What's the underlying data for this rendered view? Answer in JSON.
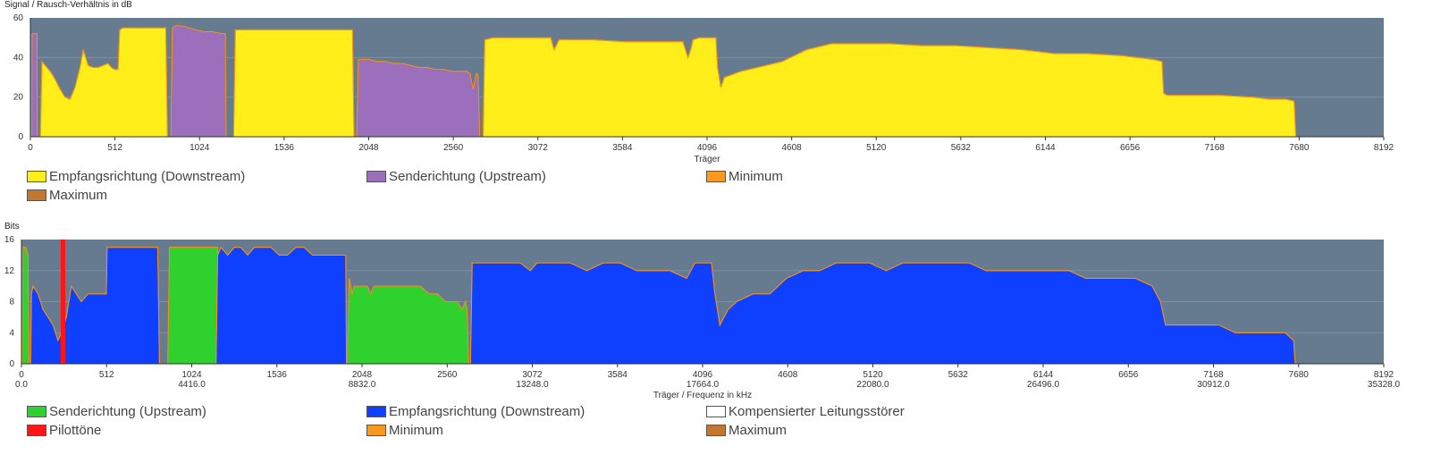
{
  "chart_data": [
    {
      "type": "area",
      "ylabel": "Signal / Rausch-Verhältnis in dB",
      "xlabel": "Träger",
      "ylim": [
        0,
        60
      ],
      "xlim": [
        0,
        8192
      ],
      "yticks": [
        "0",
        "20",
        "40",
        "60"
      ],
      "xticks": [
        "0",
        "512",
        "1024",
        "1536",
        "2048",
        "2560",
        "3072",
        "3584",
        "4096",
        "4608",
        "5120",
        "5632",
        "6144",
        "6656",
        "7168",
        "7680",
        "8192"
      ],
      "grid": true,
      "background": "#667b8f",
      "legend_position": "bottom-left",
      "legend": [
        {
          "label": "Empfangsrichtung (Downstream)",
          "color": "#ffee1a"
        },
        {
          "label": "Senderichtung (Upstream)",
          "color": "#9b6fbb"
        },
        {
          "label": "Minimum",
          "color": "#f79a1f"
        },
        {
          "label": "Maximum",
          "color": "#c4782f"
        }
      ],
      "series": [
        {
          "name": "Senderichtung (Upstream)",
          "color": "#9b6fbb",
          "segments": [
            {
              "x": [
                8,
                10,
                12,
                25,
                30,
                35,
                40,
                42
              ],
              "y": [
                0,
                52,
                52,
                52,
                52,
                52,
                52,
                0
              ]
            },
            {
              "x": [
                850,
                860,
                880,
                920,
                960,
                1000,
                1050,
                1100,
                1160,
                1180,
                1185
              ],
              "y": [
                0,
                55,
                56,
                56,
                55,
                54,
                53,
                53,
                52,
                52,
                0
              ]
            },
            {
              "x": [
                1975,
                1985,
                2000,
                2050,
                2100,
                2150,
                2200,
                2250,
                2300,
                2350,
                2400,
                2450,
                2500,
                2550,
                2600,
                2640,
                2660,
                2680,
                2700,
                2710,
                2720
              ],
              "y": [
                0,
                39,
                39,
                39,
                38,
                38,
                37,
                37,
                36,
                35,
                35,
                34,
                34,
                33,
                33,
                33,
                32,
                24,
                32,
                31,
                0
              ]
            }
          ]
        },
        {
          "name": "Empfangsrichtung (Downstream)",
          "color": "#ffee1a",
          "segments": [
            {
              "x": [
                60,
                70,
                90,
                120,
                150,
                180,
                210,
                240,
                270,
                300,
                320,
                350,
                380,
                410,
                440,
                470,
                490,
                510,
                520,
                530,
                540,
                560,
                600,
                700,
                800,
                820,
                830
              ],
              "y": [
                0,
                38,
                36,
                33,
                29,
                24,
                20,
                19,
                25,
                35,
                44,
                36,
                35,
                35,
                36,
                37,
                35,
                34,
                34,
                34,
                54,
                55,
                55,
                55,
                55,
                55,
                0
              ]
            },
            {
              "x": [
                1230,
                1240,
                1280,
                1350,
                1500,
                1700,
                1850,
                1950,
                1960
              ],
              "y": [
                0,
                54,
                54,
                54,
                54,
                54,
                54,
                54,
                0
              ]
            },
            {
              "x": [
                2740,
                2750,
                2800,
                3000,
                3150,
                3170,
                3200,
                3400,
                3600,
                3800,
                3950,
                3980,
                4000,
                4010,
                4050,
                4100,
                4150,
                4160,
                4180,
                4200,
                4300,
                4400,
                4500,
                4550,
                4600,
                4650,
                4700,
                4800,
                4850,
                4900,
                5000,
                5200,
                5400,
                5600,
                5800,
                6000,
                6100,
                6200,
                6400,
                6600,
                6700,
                6800,
                6850,
                6860,
                6880,
                7000,
                7200,
                7400,
                7500,
                7600,
                7650,
                7660
              ],
              "y": [
                0,
                49,
                50,
                50,
                50,
                44,
                49,
                49,
                48,
                48,
                48,
                40,
                45,
                49,
                50,
                50,
                50,
                35,
                25,
                30,
                33,
                35,
                37,
                38,
                40,
                42,
                44,
                46,
                47,
                47,
                47,
                47,
                46,
                46,
                45,
                44,
                43,
                42,
                42,
                41,
                40,
                39,
                38,
                22,
                21,
                21,
                21,
                20,
                19,
                19,
                18,
                0
              ]
            }
          ]
        }
      ]
    },
    {
      "type": "area",
      "ylabel": "Bits",
      "xlabel": "Träger / Frequenz in kHz",
      "ylim": [
        0,
        16
      ],
      "xlim": [
        0,
        8192
      ],
      "yticks": [
        "0",
        "4",
        "8",
        "12",
        "16"
      ],
      "xticks": [
        "0",
        "512",
        "1024",
        "1536",
        "2048",
        "2560",
        "3072",
        "3584",
        "4096",
        "4608",
        "5120",
        "5632",
        "6144",
        "6656",
        "7168",
        "7680",
        "8192"
      ],
      "freq_labels": [
        {
          "x": 0,
          "label": "0.0"
        },
        {
          "x": 1024,
          "label": "4416.0"
        },
        {
          "x": 2048,
          "label": "8832.0"
        },
        {
          "x": 3072,
          "label": "13248.0"
        },
        {
          "x": 4096,
          "label": "17664.0"
        },
        {
          "x": 5120,
          "label": "22080.0"
        },
        {
          "x": 6144,
          "label": "26496.0"
        },
        {
          "x": 7168,
          "label": "30912.0"
        },
        {
          "x": 8192,
          "label": "35328.0"
        }
      ],
      "grid": true,
      "background": "#667b8f",
      "legend_position": "bottom-left",
      "legend": [
        {
          "label": "Senderichtung (Upstream)",
          "color": "#2ed12e"
        },
        {
          "label": "Empfangsrichtung (Downstream)",
          "color": "#1040ff"
        },
        {
          "label": "Kompensierter Leitungsstörer",
          "color": "#ffffff"
        },
        {
          "label": "Pilottöne",
          "color": "#ff1515"
        },
        {
          "label": "Minimum",
          "color": "#f79a1f"
        },
        {
          "label": "Maximum",
          "color": "#c4782f"
        }
      ],
      "pilot_tones": [
        {
          "x": 250
        }
      ],
      "series": [
        {
          "name": "Senderichtung (Upstream)",
          "color": "#2ed12e",
          "segments": [
            {
              "x": [
                5,
                10,
                25,
                40,
                45
              ],
              "y": [
                0,
                15,
                15,
                14,
                0
              ]
            },
            {
              "x": [
                880,
                890,
                920,
                1000,
                1100,
                1180,
                1190
              ],
              "y": [
                0,
                15,
                15,
                15,
                15,
                15,
                0
              ]
            },
            {
              "x": [
                1960,
                1970,
                1990,
                2000,
                2040,
                2080,
                2100,
                2120,
                2160,
                2200,
                2240,
                2300,
                2350,
                2400,
                2450,
                2500,
                2550,
                2600,
                2620,
                2650,
                2670,
                2680,
                2690
              ],
              "y": [
                0,
                11,
                9,
                10,
                10,
                10,
                9,
                10,
                10,
                10,
                10,
                10,
                10,
                10,
                9,
                9,
                8,
                8,
                8,
                7,
                8,
                7,
                0
              ]
            }
          ]
        },
        {
          "name": "Empfangsrichtung (Downstream)",
          "color": "#1040ff",
          "segments": [
            {
              "x": [
                55,
                60,
                70,
                100,
                130,
                160,
                190,
                220,
                240,
                270,
                300,
                330,
                360,
                400,
                450,
                480,
                510,
                515,
                800,
                820,
                830
              ],
              "y": [
                0,
                9,
                10,
                9,
                7,
                6,
                5,
                3,
                4,
                6,
                10,
                9,
                8,
                9,
                9,
                9,
                9,
                15,
                15,
                15,
                0
              ]
            },
            {
              "x": [
                1170,
                1180,
                1200,
                1240,
                1280,
                1320,
                1360,
                1400,
                1450,
                1500,
                1550,
                1600,
                1650,
                1700,
                1750,
                1800,
                1850,
                1900,
                1940,
                1950,
                1955
              ],
              "y": [
                0,
                14,
                15,
                14,
                15,
                15,
                14,
                15,
                15,
                15,
                14,
                14,
                15,
                15,
                14,
                14,
                14,
                14,
                14,
                14,
                0
              ]
            },
            {
              "x": [
                2700,
                2710,
                2720,
                3000,
                3060,
                3100,
                3200,
                3300,
                3400,
                3500,
                3600,
                3700,
                3800,
                3900,
                4000,
                4050,
                4100,
                4150,
                4170,
                4200,
                4250,
                4300,
                4400,
                4500,
                4550,
                4600,
                4700,
                4800,
                4900,
                5000,
                5100,
                5200,
                5300,
                5400,
                5500,
                5600,
                5700,
                5800,
                5900,
                6000,
                6100,
                6200,
                6300,
                6400,
                6500,
                6600,
                6700,
                6800,
                6850,
                6880,
                7000,
                7200,
                7300,
                7400,
                7500,
                7600,
                7650,
                7660
              ],
              "y": [
                0,
                13,
                13,
                13,
                12,
                13,
                13,
                13,
                12,
                13,
                13,
                12,
                12,
                12,
                11,
                13,
                13,
                13,
                9,
                5,
                7,
                8,
                9,
                9,
                10,
                11,
                12,
                12,
                13,
                13,
                13,
                12,
                13,
                13,
                13,
                13,
                13,
                12,
                12,
                12,
                12,
                12,
                12,
                11,
                11,
                11,
                11,
                10,
                8,
                5,
                5,
                5,
                4,
                4,
                4,
                4,
                3,
                0
              ]
            }
          ]
        }
      ]
    }
  ]
}
